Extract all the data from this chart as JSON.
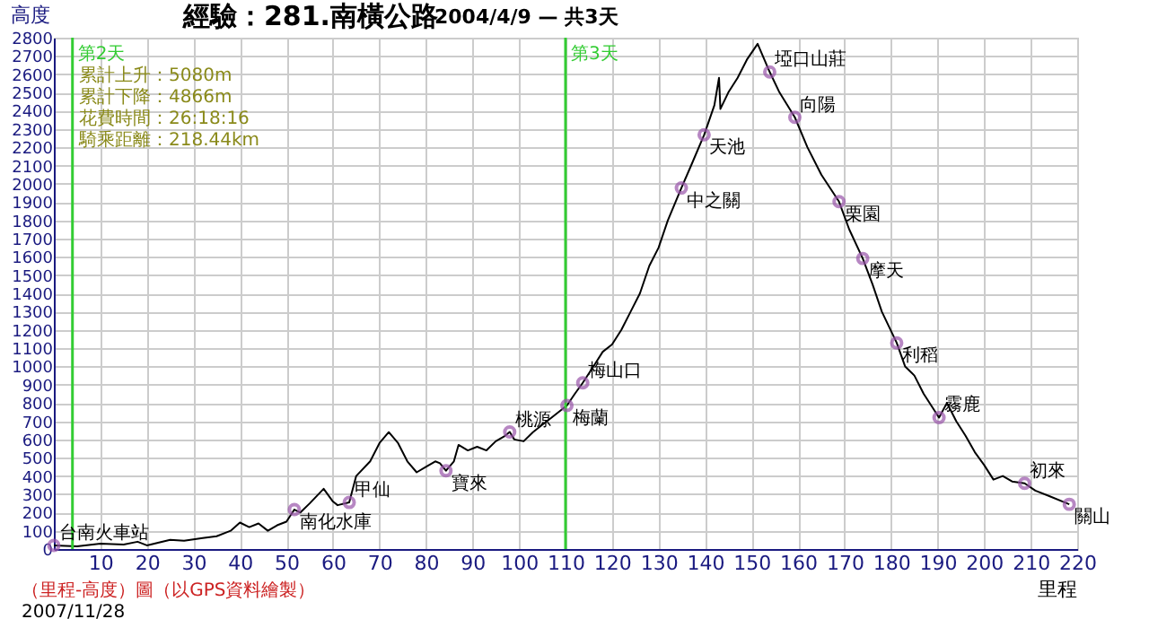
{
  "chart_data": {
    "type": "line",
    "title": "經驗：281.南橫公路",
    "subtitle": "2004/4/9 — 共3天",
    "ylabel": "高度",
    "xlabel": "里程",
    "x": [
      0,
      5,
      10,
      15,
      18,
      20,
      25,
      28,
      32,
      35,
      38,
      40,
      42,
      44,
      46,
      48,
      50,
      51.7,
      53,
      55,
      58,
      60,
      61,
      63.5,
      65,
      68,
      70,
      72,
      74,
      76,
      78,
      80,
      82,
      83,
      84.3,
      86,
      87,
      89,
      91,
      93,
      95,
      97,
      98,
      99,
      101,
      103,
      105,
      107,
      110.3,
      112,
      113.7,
      116,
      118,
      120,
      122,
      124,
      126,
      128,
      130,
      132,
      134.9,
      137,
      139.8,
      142,
      143,
      143.3,
      145,
      147,
      149,
      151.3,
      153.9,
      156,
      159.3,
      162,
      165,
      168.8,
      171,
      173.9,
      176,
      178,
      181.2,
      183,
      185,
      187,
      190.3,
      192,
      194,
      196,
      198,
      200,
      202,
      204,
      206,
      208.7,
      211,
      214,
      218.3
    ],
    "series": [
      {
        "color": "#000000",
        "values": [
          20,
          15,
          30,
          25,
          40,
          20,
          50,
          45,
          60,
          70,
          100,
          145,
          120,
          140,
          100,
          130,
          150,
          216,
          200,
          250,
          330,
          260,
          240,
          255,
          400,
          480,
          580,
          640,
          580,
          480,
          420,
          450,
          480,
          470,
          429,
          480,
          570,
          540,
          560,
          540,
          590,
          620,
          641,
          600,
          590,
          640,
          680,
          720,
          786,
          850,
          910,
          1000,
          1080,
          1120,
          1200,
          1300,
          1400,
          1550,
          1650,
          1800,
          1977,
          2100,
          2268,
          2430,
          2580,
          2410,
          2500,
          2580,
          2680,
          2766,
          2612,
          2500,
          2364,
          2200,
          2050,
          1902,
          1750,
          1591,
          1450,
          1300,
          1129,
          1000,
          950,
          850,
          720,
          800,
          700,
          620,
          530,
          460,
          380,
          400,
          370,
          360,
          320,
          290,
          245
        ]
      }
    ],
    "xlim": [
      0,
      220
    ],
    "xticks": [
      10,
      20,
      30,
      40,
      50,
      60,
      70,
      80,
      90,
      100,
      110,
      120,
      130,
      140,
      150,
      160,
      170,
      180,
      190,
      200,
      210,
      220
    ],
    "ylim": [
      0,
      2800
    ],
    "yticks": [
      0,
      100,
      200,
      300,
      400,
      500,
      600,
      700,
      800,
      900,
      1000,
      1100,
      1200,
      1300,
      1400,
      1500,
      1600,
      1700,
      1800,
      1900,
      2000,
      2100,
      2200,
      2300,
      2400,
      2500,
      2600,
      2700,
      2800
    ],
    "grid": true,
    "marker": "none",
    "line_style": "solid",
    "ref_lines": [
      {
        "axis": "x",
        "value": 4,
        "label": "第2天",
        "color": "#33cc33"
      },
      {
        "axis": "x",
        "value": 110,
        "label": "第3天",
        "color": "#33cc33"
      }
    ],
    "annotations": [
      "累計上升：5080m",
      "累計下降：4866m",
      "花費時間：26:18:16",
      "騎乘距離：218.44km",
      "（里程-高度）圖（以GPS資料繪製）",
      "2007/11/28",
      {
        "text": "台南火車站",
        "x": 0,
        "y": 20
      },
      {
        "text": "南化水庫",
        "x": 51.7,
        "y": 216
      },
      {
        "text": "甲仙",
        "x": 63.5,
        "y": 255
      },
      {
        "text": "寶來",
        "x": 84.3,
        "y": 429
      },
      {
        "text": "桃源",
        "x": 98,
        "y": 641
      },
      {
        "text": "梅蘭",
        "x": 110.3,
        "y": 786
      },
      {
        "text": "梅山口",
        "x": 113.7,
        "y": 910
      },
      {
        "text": "中之關",
        "x": 134.9,
        "y": 1977
      },
      {
        "text": "天池",
        "x": 139.8,
        "y": 2268
      },
      {
        "text": "埡口山莊",
        "x": 153.9,
        "y": 2612
      },
      {
        "text": "向陽",
        "x": 159.3,
        "y": 2364
      },
      {
        "text": "栗園",
        "x": 168.8,
        "y": 1902
      },
      {
        "text": "摩天",
        "x": 173.9,
        "y": 1591
      },
      {
        "text": "利稻",
        "x": 181.2,
        "y": 1129
      },
      {
        "text": "霧鹿",
        "x": 190.3,
        "y": 720
      },
      {
        "text": "初來",
        "x": 208.7,
        "y": 360
      },
      {
        "text": "關山",
        "x": 218.3,
        "y": 245
      }
    ]
  }
}
